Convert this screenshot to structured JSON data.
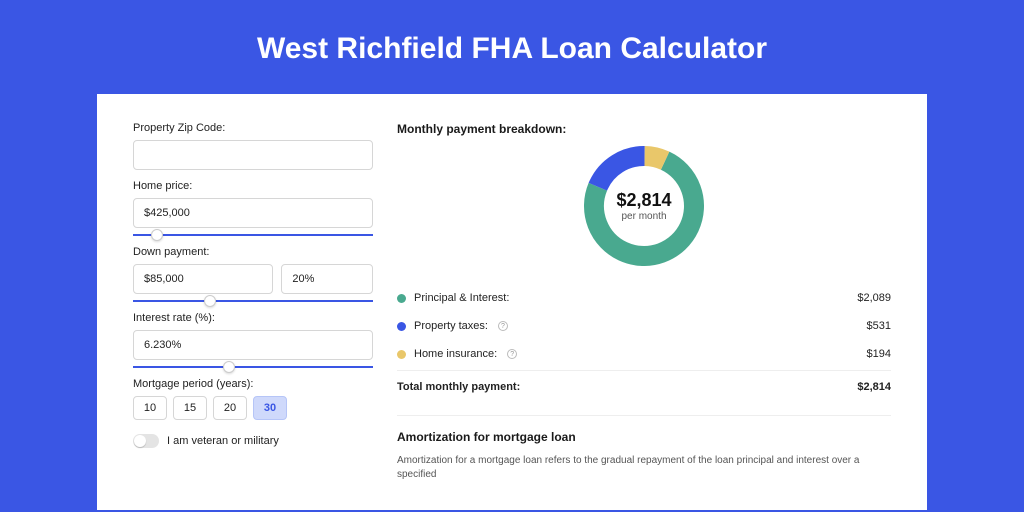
{
  "page": {
    "title": "West Richfield FHA Loan Calculator",
    "background_color": "#3a56e4",
    "card_background": "#ffffff"
  },
  "form": {
    "zip_label": "Property Zip Code:",
    "zip_value": "",
    "home_price_label": "Home price:",
    "home_price_value": "$425,000",
    "home_price_slider_percent": 10,
    "down_payment_label": "Down payment:",
    "down_payment_value": "$85,000",
    "down_payment_percent_value": "20%",
    "down_payment_slider_percent": 32,
    "interest_label": "Interest rate (%):",
    "interest_value": "6.230%",
    "interest_slider_percent": 40,
    "period_label": "Mortgage period (years):",
    "periods": [
      "10",
      "15",
      "20",
      "30"
    ],
    "period_active_index": 3,
    "veteran_label": "I am veteran or military",
    "veteran_on": false
  },
  "breakdown": {
    "title": "Monthly payment breakdown:",
    "donut": {
      "amount": "$2,814",
      "sub": "per month",
      "slices": [
        {
          "label": "Principal & Interest",
          "value": 2089,
          "color": "#49a98f",
          "percent": 74.2
        },
        {
          "label": "Property taxes",
          "value": 531,
          "color": "#3a56e4",
          "percent": 18.9
        },
        {
          "label": "Home insurance",
          "value": 194,
          "color": "#e9c76a",
          "percent": 6.9
        }
      ],
      "ring_thickness": 20,
      "size": 120
    },
    "rows": [
      {
        "dot_color": "#49a98f",
        "label": "Principal & Interest:",
        "info": false,
        "amount": "$2,089"
      },
      {
        "dot_color": "#3a56e4",
        "label": "Property taxes:",
        "info": true,
        "amount": "$531"
      },
      {
        "dot_color": "#e9c76a",
        "label": "Home insurance:",
        "info": true,
        "amount": "$194"
      }
    ],
    "total_label": "Total monthly payment:",
    "total_amount": "$2,814"
  },
  "amortization": {
    "title": "Amortization for mortgage loan",
    "text": "Amortization for a mortgage loan refers to the gradual repayment of the loan principal and interest over a specified"
  }
}
